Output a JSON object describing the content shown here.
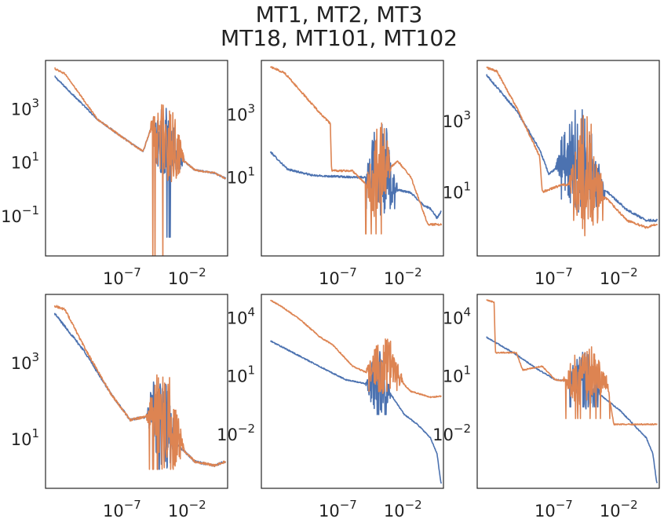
{
  "title_lines": [
    "MT1, MT2, MT3",
    "MT18, MT101, MT102"
  ],
  "colors": {
    "series_blue": "#4c72b0",
    "series_orange": "#dd8452",
    "frame": "#262626",
    "text": "#222222"
  },
  "chart_data": [
    {
      "type": "line",
      "scale": "loglog",
      "xlim_exp": [
        -13,
        1
      ],
      "ylim_exp": [
        -2.5,
        4.8
      ],
      "xticks": [
        {
          "base": "10",
          "exp": "−7",
          "value": -7
        },
        {
          "base": "10",
          "exp": "−2",
          "value": -2
        }
      ],
      "yticks": [
        {
          "base": "10",
          "exp": "3",
          "value": 3
        },
        {
          "base": "10",
          "exp": "1",
          "value": 1
        },
        {
          "base": "10",
          "exp": "−1",
          "value": -1
        }
      ],
      "series": [
        {
          "color": "#4c72b0",
          "profile": [
            [
              -12.3,
              4.2
            ],
            [
              -9,
              2.6
            ],
            [
              -7,
              1.9
            ],
            [
              -5.5,
              1.4
            ],
            [
              -4.8,
              2.4
            ],
            [
              -4.5,
              1.6
            ],
            [
              -3,
              1.3
            ],
            [
              -1.5,
              0.7
            ],
            [
              0,
              0.6
            ],
            [
              0.8,
              0.4
            ]
          ],
          "noise": {
            "from": -5,
            "to": -2.3,
            "amp": 1.4,
            "dip": -1.8
          }
        },
        {
          "color": "#dd8452",
          "profile": [
            [
              -12.3,
              4.5
            ],
            [
              -11.5,
              4.3
            ],
            [
              -9,
              2.6
            ],
            [
              -7,
              1.9
            ],
            [
              -5.5,
              1.4
            ],
            [
              -4.8,
              2.4
            ],
            [
              -4.5,
              1.6
            ],
            [
              -3,
              1.3
            ],
            [
              -1.5,
              0.7
            ],
            [
              0,
              0.6
            ],
            [
              0.8,
              0.4
            ]
          ],
          "noise": {
            "from": -5,
            "to": -2.3,
            "amp": 1.6,
            "dip": -2.8
          }
        }
      ]
    },
    {
      "type": "line",
      "scale": "loglog",
      "xlim_exp": [
        -13,
        1
      ],
      "ylim_exp": [
        -1.5,
        4.7
      ],
      "xticks": [
        {
          "base": "10",
          "exp": "−7",
          "value": -7
        },
        {
          "base": "10",
          "exp": "−2",
          "value": -2
        }
      ],
      "yticks": [
        {
          "base": "10",
          "exp": "3",
          "value": 3
        },
        {
          "base": "10",
          "exp": "1",
          "value": 1
        }
      ],
      "series": [
        {
          "color": "#4c72b0",
          "profile": [
            [
              -12.3,
              1.8
            ],
            [
              -11,
              1.25
            ],
            [
              -9,
              1.05
            ],
            [
              -6,
              1.0
            ],
            [
              -4,
              1.0
            ],
            [
              -2.5,
              0.6
            ],
            [
              -1.5,
              0.5
            ],
            [
              -0.5,
              0.1
            ],
            [
              0,
              0.0
            ],
            [
              0.5,
              -0.3
            ],
            [
              0.8,
              -0.1
            ]
          ],
          "noise": {
            "from": -5,
            "to": -2.5,
            "amp": 1.6,
            "dip": 0.0
          }
        },
        {
          "color": "#dd8452",
          "profile": [
            [
              -12.3,
              4.5
            ],
            [
              -11.2,
              4.3
            ],
            [
              -9.5,
              3.5
            ],
            [
              -8.2,
              2.9
            ],
            [
              -7.7,
              2.7
            ],
            [
              -7.6,
              1.2
            ],
            [
              -6,
              1.2
            ],
            [
              -4.5,
              0.6
            ],
            [
              -4,
              1.0
            ],
            [
              -2.5,
              1.5
            ],
            [
              -1.5,
              1.0
            ],
            [
              -0.2,
              -0.5
            ],
            [
              0.8,
              -0.5
            ]
          ],
          "noise": {
            "from": -5,
            "to": -3,
            "amp": 1.7,
            "dip": -0.8
          }
        }
      ]
    },
    {
      "type": "line",
      "scale": "loglog",
      "xlim_exp": [
        -13,
        1
      ],
      "ylim_exp": [
        -0.8,
        4.7
      ],
      "xticks": [
        {
          "base": "10",
          "exp": "−7",
          "value": -7
        },
        {
          "base": "10",
          "exp": "−2",
          "value": -2
        }
      ],
      "yticks": [
        {
          "base": "10",
          "exp": "3",
          "value": 3
        },
        {
          "base": "10",
          "exp": "1",
          "value": 1
        }
      ],
      "series": [
        {
          "color": "#4c72b0",
          "profile": [
            [
              -12.3,
              4.3
            ],
            [
              -10,
              3.3
            ],
            [
              -8.2,
              2.2
            ],
            [
              -7.5,
              1.5
            ],
            [
              -6.5,
              1.8
            ],
            [
              -5,
              1.5
            ],
            [
              -3,
              1.0
            ],
            [
              -1.5,
              0.5
            ],
            [
              0,
              0.2
            ],
            [
              0.8,
              0.2
            ]
          ],
          "noise": {
            "from": -7,
            "to": -3.2,
            "amp": 1.6,
            "dip": 0.8
          }
        },
        {
          "color": "#dd8452",
          "profile": [
            [
              -12.3,
              4.5
            ],
            [
              -11.5,
              4.4
            ],
            [
              -10,
              3.4
            ],
            [
              -8.2,
              2.0
            ],
            [
              -8,
              1.0
            ],
            [
              -6.5,
              1.2
            ],
            [
              -5,
              1.2
            ],
            [
              -3,
              0.8
            ],
            [
              -1.5,
              0.2
            ],
            [
              0,
              0.0
            ],
            [
              0.8,
              0.1
            ]
          ],
          "noise": {
            "from": -6,
            "to": -3.2,
            "amp": 1.8,
            "dip": 0.2
          }
        }
      ]
    },
    {
      "type": "line",
      "scale": "loglog",
      "xlim_exp": [
        -13,
        1
      ],
      "ylim_exp": [
        -0.3,
        4.8
      ],
      "xticks": [
        {
          "base": "10",
          "exp": "−7",
          "value": -7
        },
        {
          "base": "10",
          "exp": "−2",
          "value": -2
        }
      ],
      "yticks": [
        {
          "base": "10",
          "exp": "3",
          "value": 3
        },
        {
          "base": "10",
          "exp": "1",
          "value": 1
        }
      ],
      "series": [
        {
          "color": "#4c72b0",
          "profile": [
            [
              -12.3,
              4.3
            ],
            [
              -10,
              3.3
            ],
            [
              -8,
              2.2
            ],
            [
              -6.5,
              1.5
            ],
            [
              -5,
              1.6
            ],
            [
              -3,
              0.9
            ],
            [
              -1.5,
              0.4
            ],
            [
              0,
              0.3
            ],
            [
              0.8,
              0.4
            ]
          ],
          "noise": {
            "from": -5.3,
            "to": -2.8,
            "amp": 1.3,
            "dip": 0.2
          }
        },
        {
          "color": "#dd8452",
          "profile": [
            [
              -12.3,
              4.5
            ],
            [
              -11.5,
              4.4
            ],
            [
              -10,
              3.4
            ],
            [
              -8,
              2.2
            ],
            [
              -6.5,
              1.5
            ],
            [
              -5,
              1.6
            ],
            [
              -3,
              0.9
            ],
            [
              -1.5,
              0.4
            ],
            [
              0,
              0.3
            ],
            [
              0.8,
              0.4
            ]
          ],
          "noise": {
            "from": -5.3,
            "to": -2.3,
            "amp": 1.4,
            "dip": 0.2
          }
        }
      ]
    },
    {
      "type": "line",
      "scale": "loglog",
      "xlim_exp": [
        -13,
        1
      ],
      "ylim_exp": [
        -4.8,
        5.2
      ],
      "xticks": [
        {
          "base": "10",
          "exp": "−7",
          "value": -7
        },
        {
          "base": "10",
          "exp": "−2",
          "value": -2
        }
      ],
      "yticks": [
        {
          "base": "10",
          "exp": "4",
          "value": 4
        },
        {
          "base": "10",
          "exp": "1",
          "value": 1
        },
        {
          "base": "10",
          "exp": "−2",
          "value": -2
        }
      ],
      "series": [
        {
          "color": "#4c72b0",
          "profile": [
            [
              -12.3,
              2.8
            ],
            [
              -10,
              2.0
            ],
            [
              -8,
              1.3
            ],
            [
              -6.5,
              0.8
            ],
            [
              -5,
              0.6
            ],
            [
              -3,
              0.0
            ],
            [
              -2,
              -1.0
            ],
            [
              -1,
              -1.5
            ],
            [
              0,
              -2.2
            ],
            [
              0.5,
              -3.0
            ],
            [
              0.8,
              -4.5
            ]
          ],
          "noise": {
            "from": -5,
            "to": -3,
            "amp": 1.7,
            "dip": -1.0
          }
        },
        {
          "color": "#dd8452",
          "profile": [
            [
              -12.3,
              4.9
            ],
            [
              -11.5,
              4.6
            ],
            [
              -10,
              3.9
            ],
            [
              -8.5,
              3.0
            ],
            [
              -7.5,
              2.6
            ],
            [
              -6,
              1.5
            ],
            [
              -5,
              1.2
            ],
            [
              -3,
              1.2
            ],
            [
              -1.5,
              0.2
            ],
            [
              0,
              -0.1
            ],
            [
              0.8,
              -0.05
            ]
          ],
          "noise": {
            "from": -5,
            "to": -2,
            "amp": 1.5,
            "dip": 0.2
          }
        }
      ]
    },
    {
      "type": "line",
      "scale": "loglog",
      "xlim_exp": [
        -13,
        1
      ],
      "ylim_exp": [
        -4.8,
        5.2
      ],
      "xticks": [
        {
          "base": "10",
          "exp": "−7",
          "value": -7
        },
        {
          "base": "10",
          "exp": "−2",
          "value": -2
        }
      ],
      "yticks": [
        {
          "base": "10",
          "exp": "4",
          "value": 4
        },
        {
          "base": "10",
          "exp": "1",
          "value": 1
        },
        {
          "base": "10",
          "exp": "−2",
          "value": -2
        }
      ],
      "series": [
        {
          "color": "#4c72b0",
          "profile": [
            [
              -12.3,
              3.0
            ],
            [
              -10,
              2.1
            ],
            [
              -8.5,
              1.4
            ],
            [
              -7,
              0.8
            ],
            [
              -5.5,
              0.7
            ],
            [
              -3.5,
              0.0
            ],
            [
              -2,
              -0.8
            ],
            [
              -1,
              -1.5
            ],
            [
              0,
              -2.2
            ],
            [
              0.5,
              -3.0
            ],
            [
              0.8,
              -4.5
            ]
          ],
          "noise": {
            "from": -6,
            "to": -3.5,
            "amp": 1.6,
            "dip": -0.6
          }
        },
        {
          "color": "#dd8452",
          "profile": [
            [
              -12.3,
              4.9
            ],
            [
              -11.7,
              4.8
            ],
            [
              -11.6,
              2.2
            ],
            [
              -10,
              2.2
            ],
            [
              -9.5,
              1.3
            ],
            [
              -8,
              1.5
            ],
            [
              -7,
              0.8
            ],
            [
              -5,
              0.6
            ],
            [
              -3,
              0.6
            ],
            [
              -2.5,
              -1.5
            ],
            [
              0.8,
              -1.5
            ]
          ],
          "noise": {
            "from": -6.5,
            "to": -2.8,
            "amp": 1.7,
            "dip": -1.2
          }
        }
      ]
    }
  ]
}
